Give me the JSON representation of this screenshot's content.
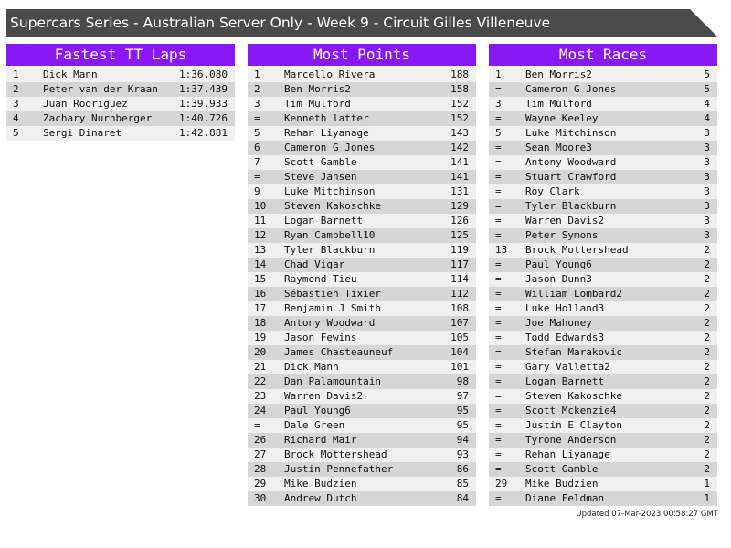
{
  "title": "Supercars Series - Australian Server Only - Week 9 - Circuit Gilles Villeneuve",
  "tables": [
    {
      "title": "Fastest TT Laps",
      "rows": [
        [
          1,
          "Dick Mann",
          "1:36.080"
        ],
        [
          2,
          "Peter van der Kraan",
          "1:37.439"
        ],
        [
          3,
          "Juan Rodriguez",
          "1:39.933"
        ],
        [
          4,
          "Zachary Nurnberger",
          "1:40.726"
        ],
        [
          5,
          "Sergi Dinaret",
          "1:42.881"
        ]
      ]
    },
    {
      "title": "Most Points",
      "rows": [
        [
          1,
          "Marcello Rivera",
          188
        ],
        [
          2,
          "Ben Morris2",
          158
        ],
        [
          3,
          "Tim Mulford",
          152
        ],
        [
          "=",
          "Kenneth latter",
          152
        ],
        [
          5,
          "Rehan Liyanage",
          143
        ],
        [
          6,
          "Cameron G Jones",
          142
        ],
        [
          7,
          "Scott Gamble",
          141
        ],
        [
          "=",
          "Steve Jansen",
          141
        ],
        [
          9,
          "Luke Mitchinson",
          131
        ],
        [
          10,
          "Steven Kakoschke",
          129
        ],
        [
          11,
          "Logan Barnett",
          126
        ],
        [
          12,
          "Ryan Campbell10",
          125
        ],
        [
          13,
          "Tyler Blackburn",
          119
        ],
        [
          14,
          "Chad Vigar",
          117
        ],
        [
          15,
          "Raymond Tieu",
          114
        ],
        [
          16,
          "Sébastien Tixier",
          112
        ],
        [
          17,
          "Benjamin J Smith",
          108
        ],
        [
          18,
          "Antony Woodward",
          107
        ],
        [
          19,
          "Jason Fewins",
          105
        ],
        [
          20,
          "James Chasteauneuf",
          104
        ],
        [
          21,
          "Dick Mann",
          101
        ],
        [
          22,
          "Dan Palamountain",
          98
        ],
        [
          23,
          "Warren Davis2",
          97
        ],
        [
          24,
          "Paul Young6",
          95
        ],
        [
          "=",
          "Dale Green",
          95
        ],
        [
          26,
          "Richard Mair",
          94
        ],
        [
          27,
          "Brock Mottershead",
          93
        ],
        [
          28,
          "Justin Pennefather",
          86
        ],
        [
          29,
          "Mike Budzien",
          85
        ],
        [
          30,
          "Andrew Dutch",
          84
        ]
      ]
    },
    {
      "title": "Most Races",
      "rows": [
        [
          1,
          "Ben Morris2",
          5
        ],
        [
          "=",
          "Cameron G Jones",
          5
        ],
        [
          3,
          "Tim Mulford",
          4
        ],
        [
          "=",
          "Wayne Keeley",
          4
        ],
        [
          5,
          "Luke Mitchinson",
          3
        ],
        [
          "=",
          "Sean Moore3",
          3
        ],
        [
          "=",
          "Antony Woodward",
          3
        ],
        [
          "=",
          "Stuart Crawford",
          3
        ],
        [
          "=",
          "Roy Clark",
          3
        ],
        [
          "=",
          "Tyler Blackburn",
          3
        ],
        [
          "=",
          "Warren Davis2",
          3
        ],
        [
          "=",
          "Peter Symons",
          3
        ],
        [
          13,
          "Brock Mottershead",
          2
        ],
        [
          "=",
          "Paul Young6",
          2
        ],
        [
          "=",
          "Jason Dunn3",
          2
        ],
        [
          "=",
          "William Lombard2",
          2
        ],
        [
          "=",
          "Luke Holland3",
          2
        ],
        [
          "=",
          "Joe Mahoney",
          2
        ],
        [
          "=",
          "Todd Edwards3",
          2
        ],
        [
          "=",
          "Stefan Marakovic",
          2
        ],
        [
          "=",
          "Gary Valletta2",
          2
        ],
        [
          "=",
          "Logan Barnett",
          2
        ],
        [
          "=",
          "Steven Kakoschke",
          2
        ],
        [
          "=",
          "Scott Mckenzie4",
          2
        ],
        [
          "=",
          "Justin E Clayton",
          2
        ],
        [
          "=",
          "Tyrone Anderson",
          2
        ],
        [
          "=",
          "Rehan Liyanage",
          2
        ],
        [
          "=",
          "Scott Gamble",
          2
        ],
        [
          29,
          "Mike Budzien",
          1
        ],
        [
          "=",
          "Diane Feldman",
          1
        ]
      ]
    }
  ],
  "footer": "Updated 07-Mar-2023 00:58:27 GMT"
}
